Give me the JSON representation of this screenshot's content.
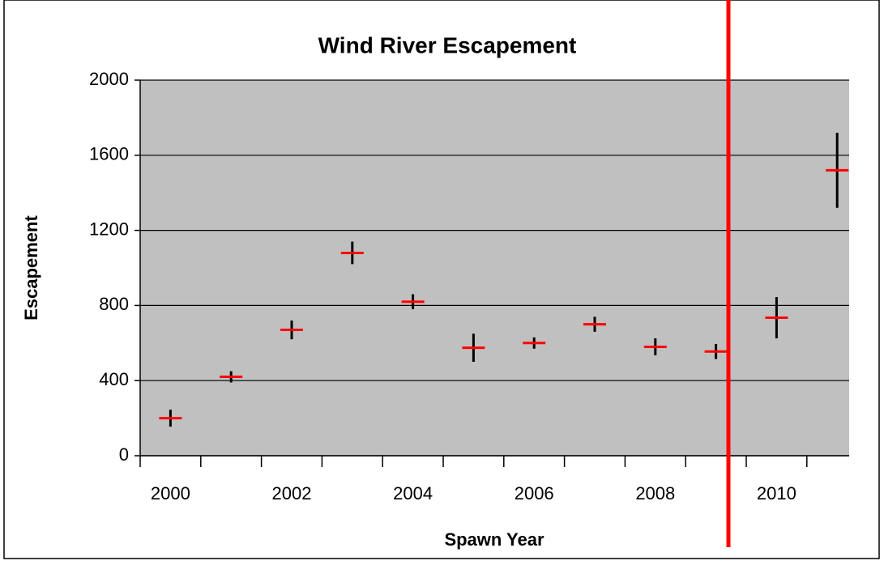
{
  "chart_data": {
    "type": "errorbar",
    "title": "Wind River Escapement",
    "x_label": "Spawn Year",
    "y_label": "Escapement",
    "categories": [
      "2000",
      null,
      "2002",
      null,
      "2004",
      null,
      "2006",
      null,
      "2008",
      null,
      "2010",
      null
    ],
    "values": [
      200,
      420,
      670,
      1080,
      820,
      575,
      600,
      700,
      580,
      555,
      735,
      1520
    ],
    "errors": [
      45,
      30,
      50,
      60,
      40,
      75,
      30,
      40,
      45,
      40,
      110,
      200
    ],
    "color": "#ff0000",
    "error_color": "#000000",
    "ylim": [
      0,
      2000
    ],
    "yticks": [
      0,
      400,
      800,
      1200,
      1600,
      2000
    ],
    "grid": true
  }
}
